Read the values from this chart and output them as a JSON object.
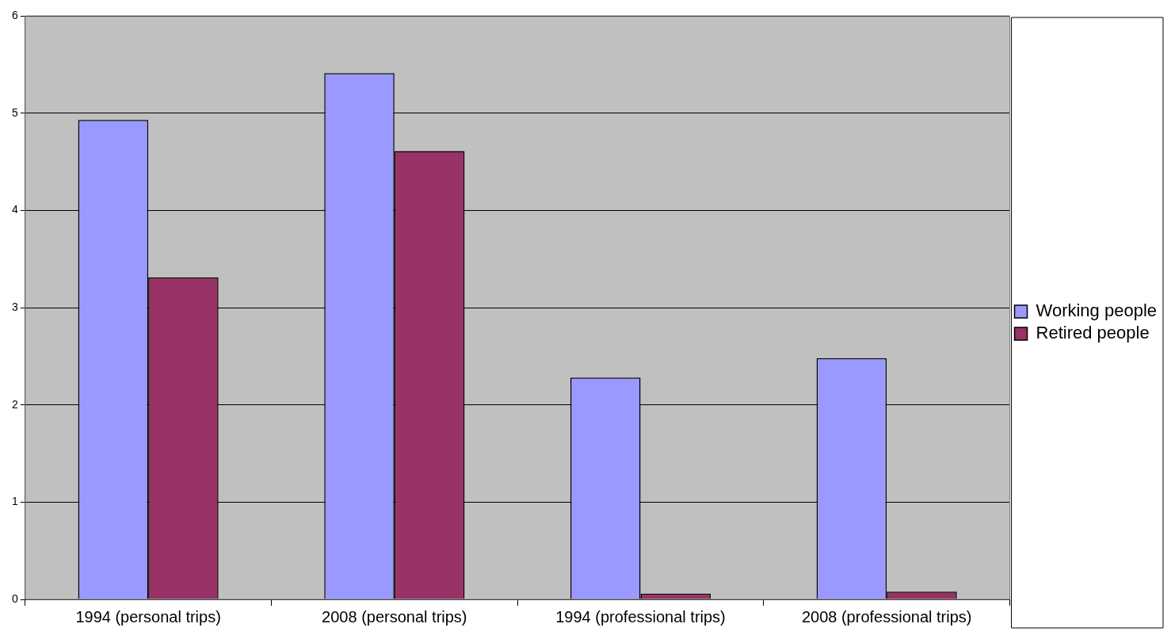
{
  "chart_data": {
    "type": "bar",
    "categories": [
      "1994 (personal trips)",
      "2008 (personal trips)",
      "1994 (professional trips)",
      "2008 (professional trips)"
    ],
    "series": [
      {
        "name": "Working people",
        "color": "#9999ff",
        "values": [
          4.93,
          5.41,
          2.28,
          2.48
        ]
      },
      {
        "name": "Retired people",
        "color": "#993366",
        "values": [
          3.31,
          4.61,
          0.06,
          0.08
        ]
      }
    ],
    "ylim": [
      0,
      6
    ],
    "yticks": [
      0,
      1,
      2,
      3,
      4,
      5,
      6
    ],
    "grid": "y",
    "legend": "right"
  }
}
